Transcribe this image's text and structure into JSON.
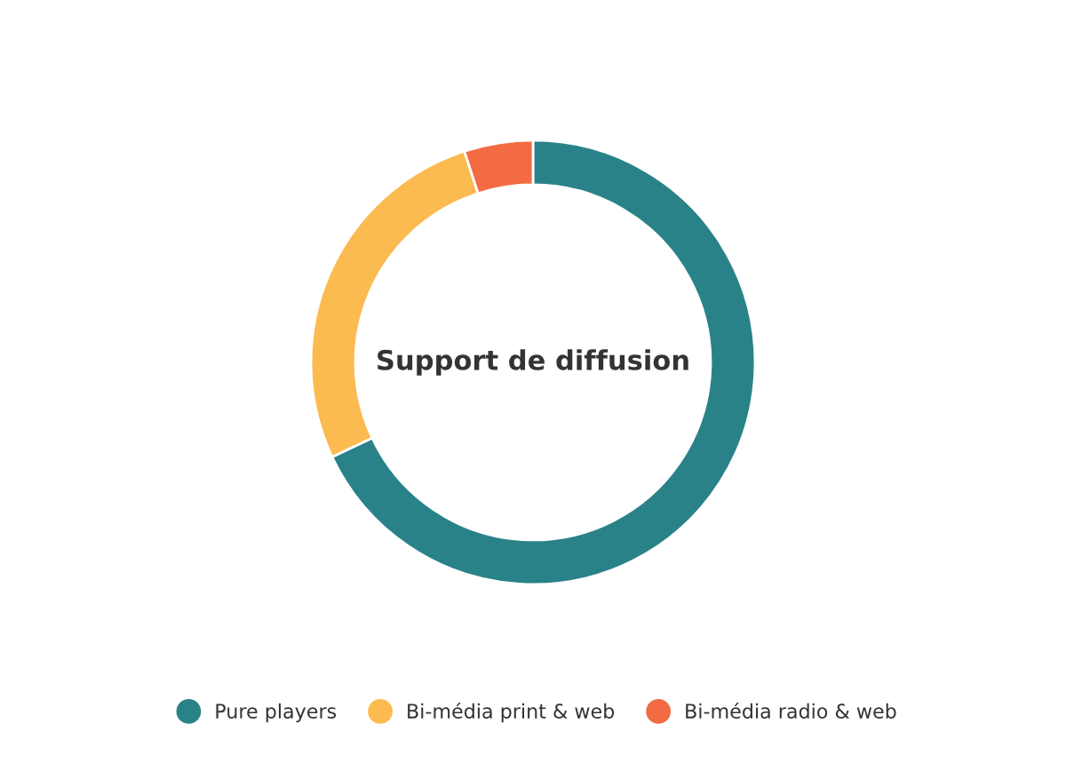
{
  "chart_data": {
    "type": "donut",
    "title": "Support de diffusion",
    "categories": [
      "Pure players",
      "Bi-média print & web",
      "Bi-média radio & web"
    ],
    "values": [
      68,
      27,
      5
    ],
    "colors": [
      "#2a8289",
      "#fbbb50",
      "#f26b43"
    ],
    "legend": "bottom"
  }
}
